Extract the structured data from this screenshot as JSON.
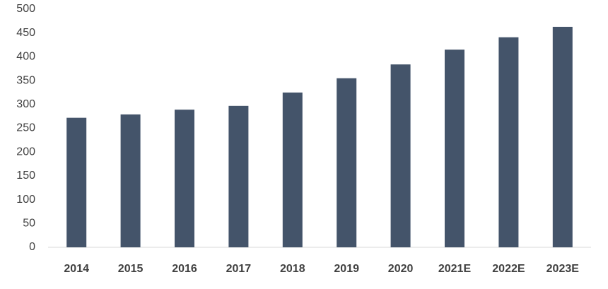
{
  "chart_data": {
    "type": "bar",
    "categories": [
      "2014",
      "2015",
      "2016",
      "2017",
      "2018",
      "2019",
      "2020",
      "2021E",
      "2022E",
      "2023E"
    ],
    "values": [
      272,
      279,
      289,
      297,
      325,
      355,
      384,
      415,
      441,
      463
    ],
    "color": "#44546a",
    "ylim": [
      0,
      500
    ],
    "yticks": [
      0,
      50,
      100,
      150,
      200,
      250,
      300,
      350,
      400,
      450,
      500
    ],
    "grid": false
  }
}
